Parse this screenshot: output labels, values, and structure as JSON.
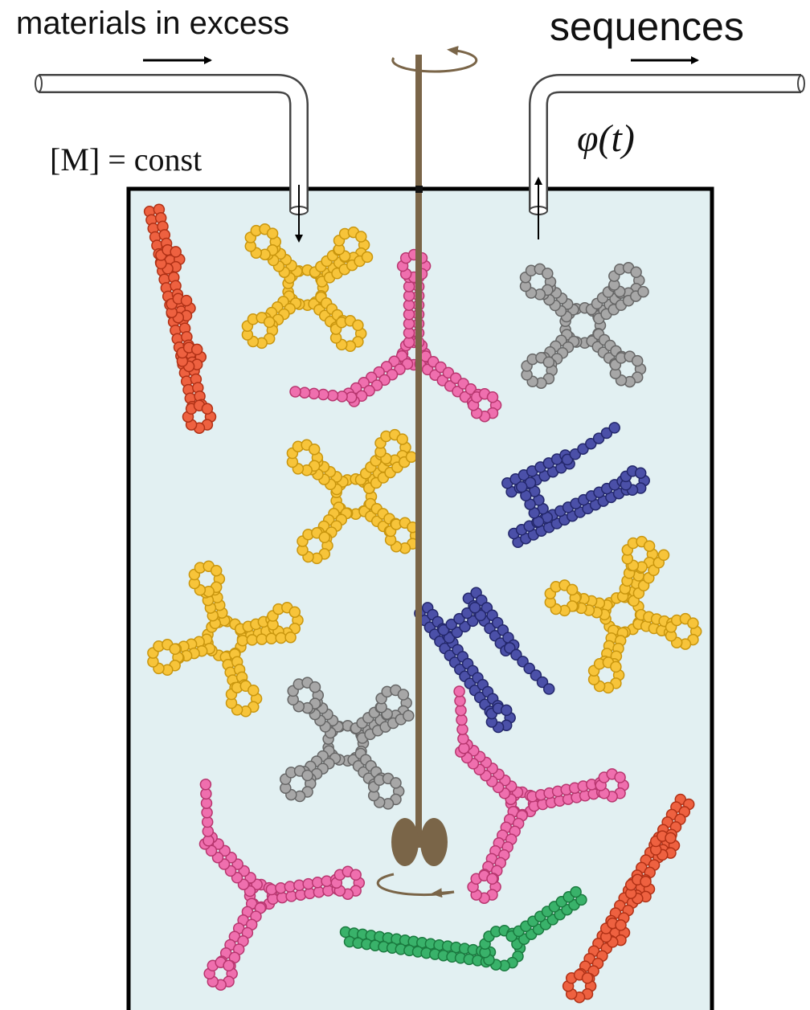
{
  "labels": {
    "inflow": "materials in excess",
    "outflow": "sequences",
    "concentration": "[M] = const",
    "flux": "φ(t)"
  }
}
